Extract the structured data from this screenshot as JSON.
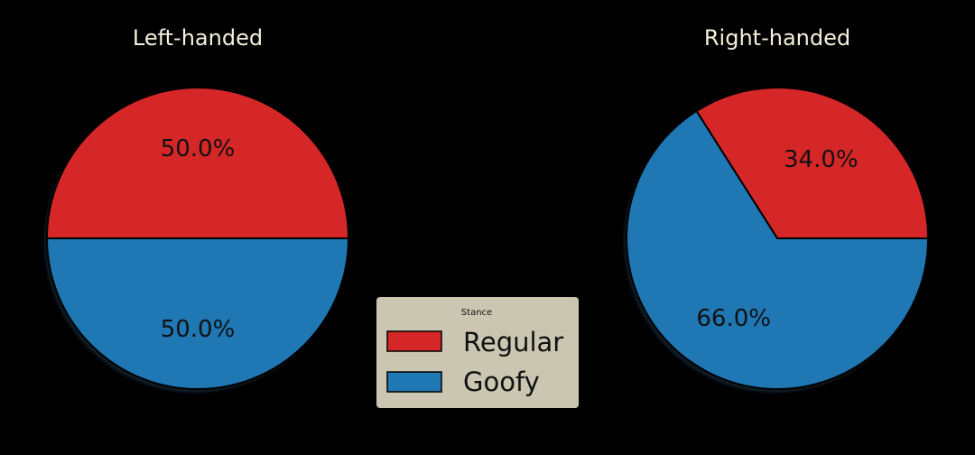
{
  "chart_data": [
    {
      "type": "pie",
      "title": "Left-handed",
      "categories": [
        "Regular",
        "Goofy"
      ],
      "values": [
        50.0,
        50.0
      ],
      "labels": [
        "50.0%",
        "50.0%"
      ],
      "colors": [
        "#d62728",
        "#1f77b4"
      ],
      "shadow": true
    },
    {
      "type": "pie",
      "title": "Right-handed",
      "categories": [
        "Regular",
        "Goofy"
      ],
      "values": [
        34.0,
        66.0
      ],
      "labels": [
        "34.0%",
        "66.0%"
      ],
      "colors": [
        "#d62728",
        "#1f77b4"
      ],
      "shadow": true
    }
  ],
  "legend": {
    "title": "Stance",
    "placement": "bottom-center",
    "background": "#cbc6b1",
    "items": [
      {
        "label": "Regular",
        "color": "#d62728"
      },
      {
        "label": "Goofy",
        "color": "#1f77b4"
      }
    ]
  },
  "colors": {
    "background": "#000000",
    "title_text": "#f5f0dc",
    "edge": "#000000"
  }
}
